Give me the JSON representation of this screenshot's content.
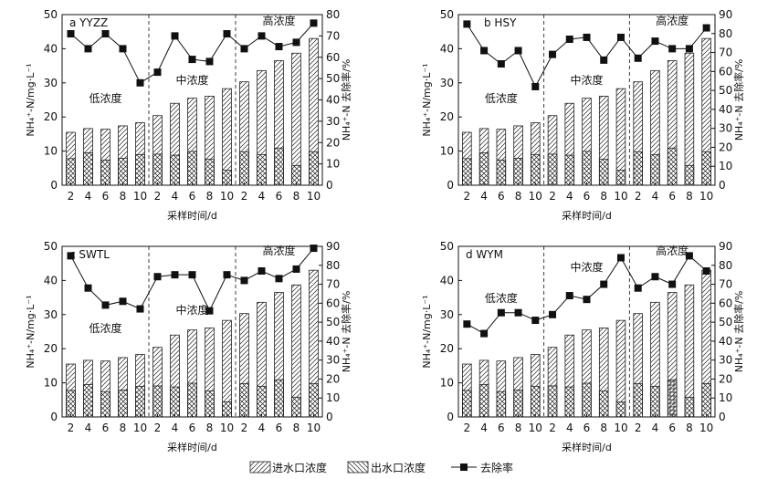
{
  "chart_data": [
    {
      "type": "bar",
      "panel_label": "a  YYZZ",
      "xlabel": "采样时间/d",
      "ylabel": "NH₄⁺-N/mg·L⁻¹",
      "y2label": "NH₄⁺-N 去除率/%",
      "ylim": [
        0,
        50
      ],
      "yticks": [
        0,
        10,
        20,
        30,
        40,
        50
      ],
      "y2lim": [
        0,
        80
      ],
      "y2ticks": [
        0,
        10,
        20,
        30,
        40,
        50,
        60,
        70,
        80
      ],
      "categories": [
        "2",
        "4",
        "6",
        "8",
        "10",
        "2",
        "4",
        "6",
        "8",
        "10",
        "2",
        "4",
        "6",
        "8",
        "10"
      ],
      "zones": [
        "低浓度",
        "中浓度",
        "高浓度"
      ],
      "series": [
        {
          "name": "进水口浓度",
          "kind": "bar",
          "axis": "left",
          "values": [
            15.5,
            16.6,
            16.4,
            17.4,
            18.3,
            20.4,
            24.0,
            25.5,
            26.1,
            28.3,
            30.3,
            33.6,
            36.5,
            38.7,
            43.0
          ]
        },
        {
          "name": "出水口浓度",
          "kind": "bar",
          "axis": "left",
          "values": [
            7.8,
            9.5,
            7.4,
            7.9,
            9.0,
            9.1,
            8.8,
            9.9,
            7.6,
            4.4,
            9.8,
            9.0,
            10.9,
            5.8,
            9.8
          ]
        },
        {
          "name": "去除率",
          "kind": "line",
          "axis": "right",
          "values": [
            71,
            64,
            71,
            64,
            48,
            53,
            70,
            59,
            58,
            71,
            64,
            70,
            65,
            67,
            76
          ]
        }
      ]
    },
    {
      "type": "bar",
      "panel_label": "b  HSY",
      "xlabel": "采样时间/d",
      "ylabel": "NH₄⁺-N/mg·L⁻¹",
      "y2label": "NH₄⁺-N 去除率/%",
      "ylim": [
        0,
        50
      ],
      "yticks": [
        0,
        10,
        20,
        30,
        40,
        50
      ],
      "y2lim": [
        0,
        90
      ],
      "y2ticks": [
        0,
        10,
        20,
        30,
        40,
        50,
        60,
        70,
        80,
        90
      ],
      "categories": [
        "2",
        "4",
        "6",
        "8",
        "10",
        "2",
        "4",
        "6",
        "8",
        "10",
        "2",
        "4",
        "6",
        "8",
        "10"
      ],
      "zones": [
        "低浓度",
        "中浓度",
        "高浓度"
      ],
      "series": [
        {
          "name": "进水口浓度",
          "kind": "bar",
          "axis": "left",
          "values": [
            15.5,
            16.6,
            16.4,
            17.4,
            18.3,
            20.4,
            24.0,
            25.5,
            26.1,
            28.3,
            30.3,
            33.6,
            36.5,
            38.7,
            43.0
          ]
        },
        {
          "name": "出水口浓度",
          "kind": "bar",
          "axis": "left",
          "values": [
            7.8,
            9.5,
            7.4,
            7.9,
            9.0,
            9.1,
            8.8,
            9.9,
            7.6,
            4.4,
            9.8,
            9.0,
            10.9,
            5.8,
            9.8
          ]
        },
        {
          "name": "去除率",
          "kind": "line",
          "axis": "right",
          "values": [
            85,
            71,
            64,
            71,
            52,
            69,
            77,
            78,
            66,
            78,
            67,
            76,
            72,
            72,
            83
          ]
        }
      ]
    },
    {
      "type": "bar",
      "panel_label": "c  SWTL",
      "xlabel": "采样时间/d",
      "ylabel": "NH₄⁺-N/mg·L⁻¹",
      "y2label": "NH₄⁺-N 去除率/%",
      "ylim": [
        0,
        50
      ],
      "yticks": [
        0,
        10,
        20,
        30,
        40,
        50
      ],
      "y2lim": [
        0,
        90
      ],
      "y2ticks": [
        0,
        10,
        20,
        30,
        40,
        50,
        60,
        70,
        80,
        90
      ],
      "categories": [
        "2",
        "4",
        "6",
        "8",
        "10",
        "2",
        "4",
        "6",
        "8",
        "10",
        "2",
        "4",
        "6",
        "8",
        "10"
      ],
      "zones": [
        "低浓度",
        "中浓度",
        "高浓度"
      ],
      "series": [
        {
          "name": "进水口浓度",
          "kind": "bar",
          "axis": "left",
          "values": [
            15.5,
            16.6,
            16.4,
            17.4,
            18.3,
            20.4,
            24.0,
            25.5,
            26.1,
            28.3,
            30.3,
            33.6,
            36.5,
            38.7,
            43.0
          ]
        },
        {
          "name": "出水口浓度",
          "kind": "bar",
          "axis": "left",
          "values": [
            7.8,
            9.5,
            7.4,
            7.9,
            9.0,
            9.1,
            8.8,
            9.9,
            7.6,
            4.4,
            9.8,
            9.0,
            10.9,
            5.8,
            9.8
          ]
        },
        {
          "name": "去除率",
          "kind": "line",
          "axis": "right",
          "values": [
            85,
            68,
            59,
            61,
            57,
            74,
            75,
            75,
            56,
            75,
            72,
            77,
            73,
            78,
            89
          ]
        }
      ]
    },
    {
      "type": "bar",
      "panel_label": "d  WYM",
      "xlabel": "采样时间/d",
      "ylabel": "NH₄⁺-N/mg·L⁻¹",
      "y2label": "NH₄⁺-N 去除率/%",
      "ylim": [
        0,
        50
      ],
      "yticks": [
        0,
        10,
        20,
        30,
        40,
        50
      ],
      "y2lim": [
        0,
        90
      ],
      "y2ticks": [
        0,
        10,
        20,
        30,
        40,
        50,
        60,
        70,
        80,
        90
      ],
      "categories": [
        "2",
        "4",
        "6",
        "8",
        "10",
        "2",
        "4",
        "6",
        "8",
        "10",
        "2",
        "4",
        "6",
        "8",
        "10"
      ],
      "zones": [
        "低浓度",
        "中浓度",
        "高浓度"
      ],
      "series": [
        {
          "name": "进水口浓度",
          "kind": "bar",
          "axis": "left",
          "values": [
            15.5,
            16.6,
            16.4,
            17.4,
            18.3,
            20.4,
            24.0,
            25.5,
            26.1,
            28.3,
            30.3,
            33.6,
            36.5,
            38.7,
            43.0
          ]
        },
        {
          "name": "出水口浓度",
          "kind": "bar",
          "axis": "left",
          "values": [
            7.8,
            9.5,
            7.4,
            7.9,
            9.0,
            9.1,
            8.8,
            9.9,
            7.6,
            4.4,
            9.8,
            9.0,
            10.9,
            5.8,
            9.8
          ]
        },
        {
          "name": "去除率",
          "kind": "line",
          "axis": "right",
          "values": [
            49,
            44,
            55,
            55,
            51,
            54,
            64,
            62,
            70,
            84,
            68,
            74,
            70,
            85,
            77
          ]
        }
      ]
    }
  ],
  "legend": {
    "inlet_label": "进水口浓度",
    "outlet_label": "出水口浓度",
    "removal_label": "去除率"
  }
}
